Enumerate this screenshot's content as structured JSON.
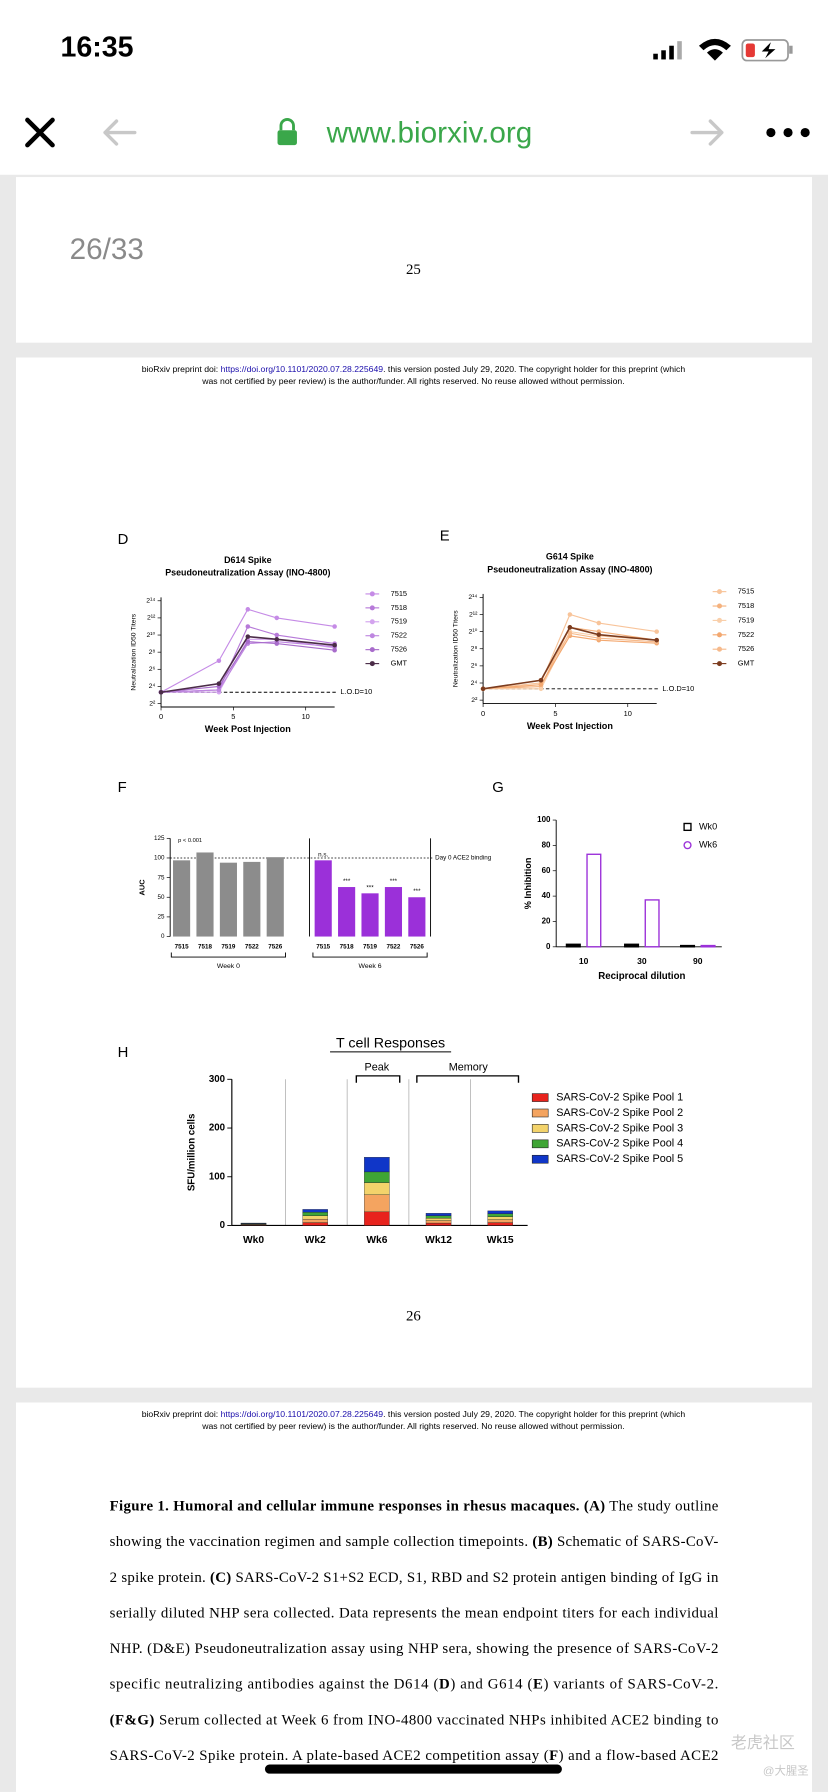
{
  "status_bar": {
    "time": "16:35"
  },
  "browser": {
    "url": "www.biorxiv.org"
  },
  "page_counter": "26/33",
  "preprint_header": {
    "line1": [
      {
        "text": "bioRxiv preprint doi: "
      },
      {
        "text": "https://doi.org/10.1101/2020.07.28.225649",
        "link": true
      },
      {
        "text": ". this version posted July 29, 2020. The copyright holder for this preprint (which"
      }
    ],
    "line2": "was not certified by peer review) is the author/funder. All rights reserved. No reuse allowed without permission."
  },
  "pages": [
    {
      "number": "25"
    },
    {
      "number": "26"
    }
  ],
  "panels": {
    "d": {
      "label": "D",
      "type": "line",
      "title": [
        "D614 Spike",
        "Pseudoneutralization Assay (INO-4800)"
      ],
      "x_label": "Week Post Injection",
      "y_label": "Neutralization ID50 Titers",
      "x": [
        0,
        4,
        6,
        8,
        12
      ],
      "xlim": [
        0,
        12
      ],
      "xticks": [
        0,
        5,
        10
      ],
      "ylim": [
        4,
        16384
      ],
      "log_base": 2,
      "yticks": [
        {
          "value": 4,
          "label": "2²"
        },
        {
          "value": 16,
          "label": "2⁴"
        },
        {
          "value": 64,
          "label": "2⁶"
        },
        {
          "value": 256,
          "label": "2⁸"
        },
        {
          "value": 1024,
          "label": "2¹⁰"
        },
        {
          "value": 4096,
          "label": "2¹²"
        },
        {
          "value": 16384,
          "label": "2¹⁴"
        }
      ],
      "lod": 10,
      "lod_label": "L.O.D=10",
      "series": [
        {
          "name": "7515",
          "color": "#c58be6",
          "values": [
            10,
            128,
            8192,
            4096,
            2048
          ]
        },
        {
          "name": "7518",
          "color": "#b77ad9",
          "values": [
            10,
            12,
            2048,
            1024,
            512
          ]
        },
        {
          "name": "7519",
          "color": "#d3a3ee",
          "values": [
            10,
            10,
            724,
            724,
            362
          ]
        },
        {
          "name": "7522",
          "color": "#be86e0",
          "values": [
            10,
            12,
            512,
            600,
            400
          ]
        },
        {
          "name": "7526",
          "color": "#a86ccb",
          "values": [
            10,
            16,
            600,
            512,
            300
          ]
        },
        {
          "name": "GMT",
          "color": "#4b2c48",
          "values": [
            10,
            20,
            900,
            724,
            450
          ]
        }
      ]
    },
    "e": {
      "label": "E",
      "type": "line",
      "title": [
        "G614 Spike",
        "Pseudoneutralization Assay (INO-4800)"
      ],
      "x_label": "Week Post Injection",
      "y_label": "Neutralization ID50 Titers",
      "x": [
        0,
        4,
        6,
        8,
        12
      ],
      "xlim": [
        0,
        12
      ],
      "xticks": [
        0,
        5,
        10
      ],
      "ylim": [
        4,
        16384
      ],
      "log_base": 2,
      "yticks": [
        {
          "value": 4,
          "label": "2²"
        },
        {
          "value": 16,
          "label": "2⁴"
        },
        {
          "value": 64,
          "label": "2⁶"
        },
        {
          "value": 256,
          "label": "2⁸"
        },
        {
          "value": 1024,
          "label": "2¹⁰"
        },
        {
          "value": 4096,
          "label": "2¹²"
        },
        {
          "value": 16384,
          "label": "2¹⁴"
        }
      ],
      "lod": 10,
      "lod_label": "L.O.D=10",
      "series": [
        {
          "name": "7515",
          "color": "#f8c49a",
          "values": [
            10,
            16,
            4096,
            2048,
            1024
          ]
        },
        {
          "name": "7518",
          "color": "#f5b27e",
          "values": [
            10,
            12,
            1448,
            1024,
            512
          ]
        },
        {
          "name": "7519",
          "color": "#f9cfaa",
          "values": [
            10,
            10,
            1024,
            724,
            512
          ]
        },
        {
          "name": "7522",
          "color": "#f3a870",
          "values": [
            10,
            14,
            724,
            512,
            400
          ]
        },
        {
          "name": "7526",
          "color": "#f6ba8c",
          "values": [
            10,
            20,
            900,
            600,
            450
          ]
        },
        {
          "name": "GMT",
          "color": "#7b3b1e",
          "values": [
            10,
            20,
            1448,
            800,
            512
          ]
        }
      ]
    },
    "f": {
      "label": "F",
      "type": "bar",
      "y_label": "AUC",
      "ylim": [
        0,
        125
      ],
      "yticks": [
        0,
        25,
        50,
        75,
        100,
        125
      ],
      "reference": 100,
      "reference_label": "Day 0 ACE2 binding",
      "p_label": "p < 0.001",
      "groups": [
        {
          "name": "Week 0",
          "color": "#8c8c8c",
          "categories": [
            "7515",
            "7518",
            "7519",
            "7522",
            "7526"
          ],
          "values": [
            97,
            107,
            94,
            95,
            101
          ]
        },
        {
          "name": "Week 6",
          "color": "#9b30d9",
          "categories": [
            "7515",
            "7518",
            "7519",
            "7522",
            "7526"
          ],
          "values": [
            97,
            63,
            55,
            63,
            50
          ],
          "annotations": [
            "n.s.",
            "***",
            "***",
            "***",
            "***"
          ]
        }
      ]
    },
    "g": {
      "label": "G",
      "type": "bar",
      "x_label": "Reciprocal dilution",
      "y_label": "% Inhibition",
      "categories": [
        "10",
        "30",
        "90"
      ],
      "ylim": [
        0,
        100
      ],
      "yticks": [
        0,
        20,
        40,
        60,
        80,
        100
      ],
      "series": [
        {
          "name": "Wk0",
          "color": "#000000",
          "values": [
            2,
            2,
            1
          ]
        },
        {
          "name": "Wk6",
          "color": "#9b30d9",
          "values": [
            73,
            37,
            1
          ]
        }
      ]
    },
    "h": {
      "label": "H",
      "type": "stacked_bar",
      "title": "T cell Responses",
      "y_label": "SFU/million cells",
      "categories": [
        "Wk0",
        "Wk2",
        "Wk6",
        "Wk12",
        "Wk15"
      ],
      "ylim": [
        0,
        300
      ],
      "yticks": [
        0,
        100,
        200,
        300
      ],
      "brackets": [
        "Peak",
        "Memory"
      ],
      "series": [
        {
          "name": "SARS-CoV-2 Spike Pool 1",
          "color": "#e8231d",
          "values": [
            1,
            6,
            28,
            5,
            6
          ]
        },
        {
          "name": "SARS-CoV-2 Spike Pool 2",
          "color": "#f4a460",
          "values": [
            1,
            7,
            35,
            5,
            6
          ]
        },
        {
          "name": "SARS-CoV-2 Spike Pool 3",
          "color": "#f3d36b",
          "values": [
            1,
            7,
            25,
            5,
            6
          ]
        },
        {
          "name": "SARS-CoV-2 Spike Pool 4",
          "color": "#3fa535",
          "values": [
            1,
            7,
            22,
            5,
            6
          ]
        },
        {
          "name": "SARS-CoV-2 Spike Pool 5",
          "color": "#1036c8",
          "values": [
            1,
            6,
            30,
            5,
            6
          ]
        }
      ]
    }
  },
  "caption": {
    "lines": [
      [
        {
          "text": "Figure 1. Humoral and cellular immune responses in rhesus macaques. (A)",
          "bold": true
        },
        {
          "text": " The study outline"
        }
      ],
      [
        {
          "text": "showing the vaccination regimen and sample collection timepoints.  "
        },
        {
          "text": "(B)",
          "bold": true
        },
        {
          "text": " Schematic of SARS-CoV-"
        }
      ],
      [
        {
          "text": "2 spike protein. "
        },
        {
          "text": "(C)",
          "bold": true
        },
        {
          "text": " SARS-CoV-2 S1+S2 ECD, S1, RBD and S2 protein antigen binding of IgG in"
        }
      ],
      [
        {
          "text": "serially diluted NHP sera collected. Data represents the mean endpoint titers for each individual"
        }
      ],
      [
        {
          "text": "NHP. (D&E) Pseudoneutralization assay using NHP sera, showing the presence of SARS-CoV-2"
        }
      ],
      [
        {
          "text": "specific neutralizing antibodies against the D614 ("
        },
        {
          "text": "D",
          "bold": true
        },
        {
          "text": ") and G614 ("
        },
        {
          "text": "E",
          "bold": true
        },
        {
          "text": ") variants of SARS-CoV-2."
        }
      ],
      [
        {
          "text": "(F&G)",
          "bold": true
        },
        {
          "text": " Serum collected at Week 6 from INO-4800 vaccinated NHPs inhibited ACE2 binding to"
        }
      ],
      [
        {
          "text": "SARS-CoV-2 Spike protein. A plate-based ACE2 competition assay ("
        },
        {
          "text": "F",
          "bold": true
        },
        {
          "text": ") and a flow-based ACE2"
        }
      ]
    ]
  },
  "watermark": [
    "老虎社区",
    "@大腥圣"
  ]
}
